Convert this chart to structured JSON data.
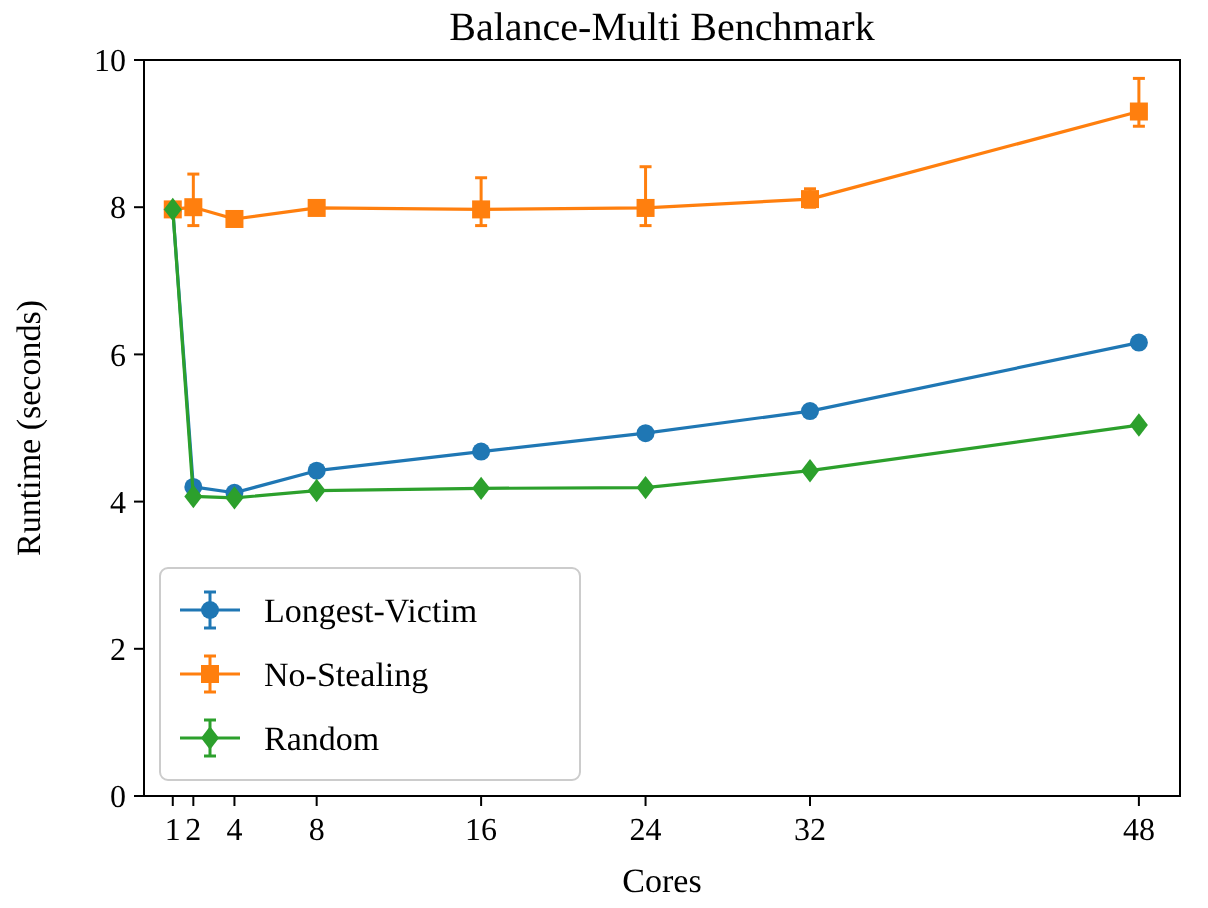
{
  "chart_data": {
    "type": "line",
    "title": "Balance-Multi Benchmark",
    "xlabel": "Cores",
    "ylabel": "Runtime (seconds)",
    "x": [
      1,
      2,
      4,
      8,
      16,
      24,
      32,
      48
    ],
    "xlim": [
      -0.4,
      50
    ],
    "xticks": [
      1,
      2,
      4,
      8,
      16,
      24,
      32,
      48
    ],
    "ylim": [
      0,
      10
    ],
    "yticks": [
      0,
      2,
      4,
      6,
      8,
      10
    ],
    "grid": false,
    "legend": "bottom left",
    "series": [
      {
        "name": "Longest-Victim",
        "color": "#1f77b4",
        "marker": "circle",
        "values": [
          7.97,
          4.2,
          4.12,
          4.42,
          4.68,
          4.93,
          5.23,
          6.16
        ]
      },
      {
        "name": "No-Stealing",
        "color": "#ff7f0e",
        "marker": "square",
        "values": [
          7.97,
          8.0,
          7.84,
          7.99,
          7.97,
          7.99,
          8.11,
          9.3
        ],
        "errors": [
          null,
          [
            7.75,
            8.45
          ],
          null,
          null,
          [
            7.75,
            8.4
          ],
          [
            7.75,
            8.55
          ],
          [
            8.0,
            8.25
          ],
          [
            9.1,
            9.75
          ]
        ]
      },
      {
        "name": "Random",
        "color": "#2ca02c",
        "marker": "diamond",
        "values": [
          7.97,
          4.07,
          4.05,
          4.15,
          4.18,
          4.19,
          4.42,
          5.04
        ]
      }
    ]
  }
}
